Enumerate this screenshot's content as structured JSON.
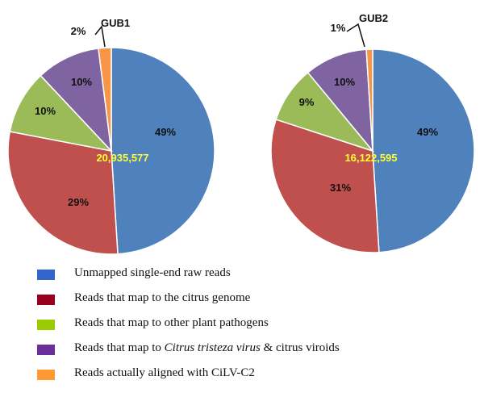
{
  "chart_data": [
    {
      "type": "pie",
      "title": "GUB1",
      "center_label": "20,935,577",
      "slices": [
        {
          "key": "unmapped",
          "value": 49,
          "label": "49%"
        },
        {
          "key": "citrus_genome",
          "value": 29,
          "label": "29%"
        },
        {
          "key": "other_pathogens",
          "value": 10,
          "label": "10%"
        },
        {
          "key": "ctv_viroids",
          "value": 10,
          "label": "10%"
        },
        {
          "key": "cilv_c2",
          "value": 2,
          "label": "2%"
        }
      ]
    },
    {
      "type": "pie",
      "title": "GUB2",
      "center_label": "16,122,595",
      "slices": [
        {
          "key": "unmapped",
          "value": 49,
          "label": "49%"
        },
        {
          "key": "citrus_genome",
          "value": 31,
          "label": "31%"
        },
        {
          "key": "other_pathogens",
          "value": 9,
          "label": "9%"
        },
        {
          "key": "ctv_viroids",
          "value": 10,
          "label": "10%"
        },
        {
          "key": "cilv_c2",
          "value": 1,
          "label": "1%"
        }
      ]
    }
  ],
  "legend": [
    {
      "key": "unmapped",
      "text": "Unmapped single-end raw reads",
      "color": "#4f81bd"
    },
    {
      "key": "citrus_genome",
      "text": "Reads that map to the citrus genome",
      "color": "#c0504d"
    },
    {
      "key": "other_pathogens",
      "text": "Reads that map to other plant pathogens",
      "color": "#9bbb59"
    },
    {
      "key": "ctv_viroids",
      "text_before": "Reads that map to ",
      "text_italic": "Citrus tristeza virus",
      "text_after": " & citrus viroids",
      "color": "#8064a2"
    },
    {
      "key": "cilv_c2",
      "text": "Reads actually aligned with CiLV-C2",
      "color": "#f79646"
    }
  ],
  "legend_swatch_colors": {
    "unmapped": "#3366cc",
    "citrus_genome": "#99001f",
    "other_pathogens": "#99cc00",
    "ctv_viroids": "#6a2f9a",
    "cilv_c2": "#ff9933"
  }
}
